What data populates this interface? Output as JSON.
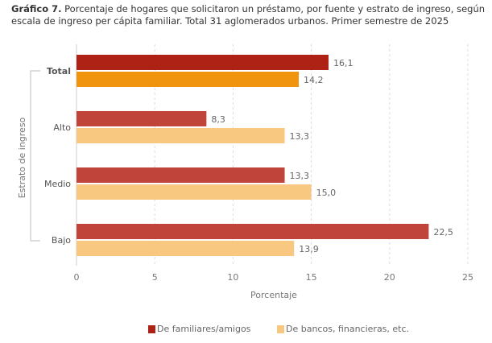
{
  "title": {
    "prefix": "Gráfico 7.",
    "text": " Porcentaje de hogares que solicitaron un préstamo, por fuente y estrato de ingreso, según escala de ingreso per cápita familiar. Total 31 aglomerados urbanos. Primer semestre de 2025"
  },
  "chart_data": {
    "type": "bar",
    "orientation": "horizontal",
    "categories": [
      "Total",
      "Alto",
      "Medio",
      "Bajo"
    ],
    "series": [
      {
        "name": "De familiares/amigos",
        "values": [
          16.1,
          8.3,
          13.3,
          22.5
        ],
        "labels": [
          "16,1",
          "8,3",
          "13,3",
          "22,5"
        ],
        "color": "#c0443a",
        "total_color": "#ad2214"
      },
      {
        "name": "De bancos, financieras, etc.",
        "values": [
          14.2,
          13.3,
          15.0,
          13.9
        ],
        "labels": [
          "14,2",
          "13,3",
          "15,0",
          "13,9"
        ],
        "color": "#f8c880",
        "total_color": "#ef940c"
      }
    ],
    "xlabel": "Porcentaje",
    "ylabel": "Estrato de ingreso",
    "xlim": [
      0,
      25
    ],
    "xticks": [
      "0",
      "5",
      "10",
      "15",
      "20",
      "25"
    ],
    "grid": "vertical dashed",
    "legend": "bottom"
  }
}
